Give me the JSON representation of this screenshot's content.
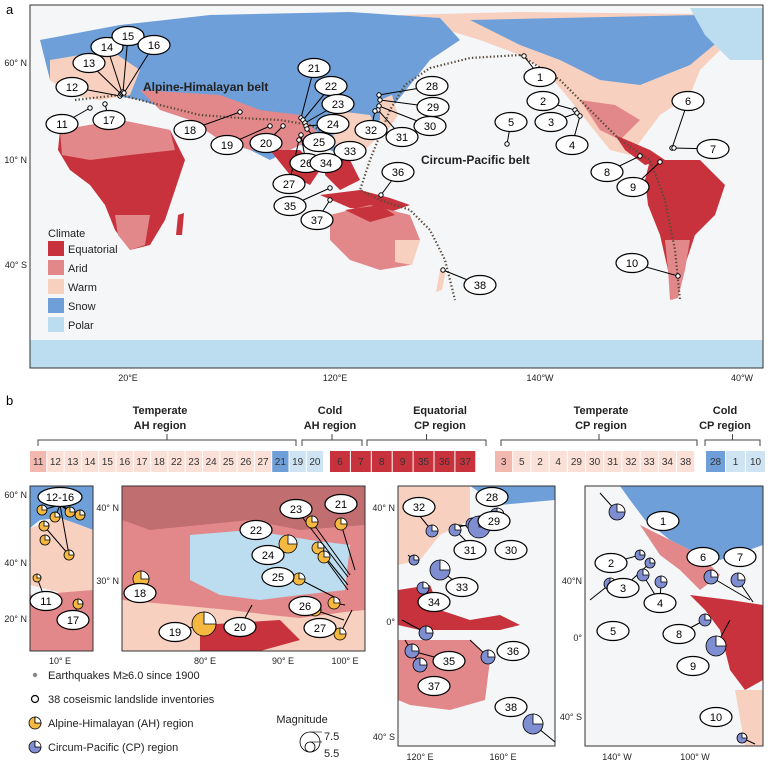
{
  "panel_a": {
    "label": "a",
    "belt_labels": {
      "ah": "Alpine-Himalayan belt",
      "cp": "Circum-Pacific belt"
    },
    "lat_ticks": [
      "60° N",
      "10° N",
      "40° S"
    ],
    "lon_ticks": [
      "20°E",
      "120°E",
      "140°W",
      "40°W"
    ],
    "legend": {
      "title": "Climate",
      "items": [
        {
          "label": "Equatorial",
          "color": "#c8323c"
        },
        {
          "label": "Arid",
          "color": "#e3888a"
        },
        {
          "label": "Warm",
          "color": "#f7d0c0"
        },
        {
          "label": "Snow",
          "color": "#6f9fd8"
        },
        {
          "label": "Polar",
          "color": "#bcdcef"
        }
      ]
    },
    "site_labels": [
      "1",
      "2",
      "3",
      "4",
      "5",
      "6",
      "7",
      "8",
      "9",
      "10",
      "11",
      "12",
      "13",
      "14",
      "15",
      "16",
      "17",
      "18",
      "19",
      "20",
      "21",
      "22",
      "23",
      "24",
      "25",
      "26",
      "27",
      "28",
      "29",
      "30",
      "31",
      "32",
      "33",
      "34",
      "35",
      "36",
      "37",
      "38"
    ]
  },
  "panel_b": {
    "label": "b",
    "group_titles": [
      {
        "line1": "Temperate",
        "line2": "AH region"
      },
      {
        "line1": "Cold",
        "line2": "AH region"
      },
      {
        "line1": "Equatorial",
        "line2": "CP region"
      },
      {
        "line1": "Temperate",
        "line2": "CP region"
      },
      {
        "line1": "Cold",
        "line2": "CP region"
      }
    ],
    "cells": [
      {
        "label": "11",
        "color": "#f2b8b0"
      },
      {
        "label": "12",
        "color": "#fbe0d8"
      },
      {
        "label": "13",
        "color": "#fbe0d8"
      },
      {
        "label": "14",
        "color": "#fbe0d8"
      },
      {
        "label": "15",
        "color": "#fbe0d8"
      },
      {
        "label": "16",
        "color": "#fbe0d8"
      },
      {
        "label": "17",
        "color": "#fbe0d8"
      },
      {
        "label": "18",
        "color": "#fbe0d8"
      },
      {
        "label": "22",
        "color": "#fbe0d8"
      },
      {
        "label": "23",
        "color": "#fbe0d8"
      },
      {
        "label": "24",
        "color": "#fbe0d8"
      },
      {
        "label": "25",
        "color": "#fbe0d8"
      },
      {
        "label": "26",
        "color": "#fbe0d8"
      },
      {
        "label": "27",
        "color": "#fbe0d8"
      },
      {
        "label": "21",
        "color": "#6f9fd8"
      },
      {
        "label": "19",
        "color": "#cfe4f3"
      },
      {
        "label": "20",
        "color": "#cfe4f3"
      },
      {
        "label": "6",
        "color": "#c8323c"
      },
      {
        "label": "7",
        "color": "#c8323c"
      },
      {
        "label": "8",
        "color": "#c8323c"
      },
      {
        "label": "9",
        "color": "#c8323c"
      },
      {
        "label": "35",
        "color": "#c8323c"
      },
      {
        "label": "36",
        "color": "#c8323c"
      },
      {
        "label": "37",
        "color": "#c8323c"
      },
      {
        "label": "3",
        "color": "#f2b8b0"
      },
      {
        "label": "5",
        "color": "#fbe0d8"
      },
      {
        "label": "2",
        "color": "#fbe0d8"
      },
      {
        "label": "4",
        "color": "#fbe0d8"
      },
      {
        "label": "29",
        "color": "#fbe0d8"
      },
      {
        "label": "30",
        "color": "#fbe0d8"
      },
      {
        "label": "31",
        "color": "#fbe0d8"
      },
      {
        "label": "32",
        "color": "#fbe0d8"
      },
      {
        "label": "33",
        "color": "#fbe0d8"
      },
      {
        "label": "34",
        "color": "#fbe0d8"
      },
      {
        "label": "38",
        "color": "#fbe0d8"
      },
      {
        "label": "28",
        "color": "#6f9fd8"
      },
      {
        "label": "1",
        "color": "#cfe4f3"
      },
      {
        "label": "10",
        "color": "#cfe4f3"
      }
    ],
    "inset_ticks": {
      "europe": {
        "lat": [
          "60° N",
          "40° N",
          "20° N"
        ],
        "lon": [
          "10° E"
        ],
        "label": "12-16"
      },
      "tibet": {
        "lat": [
          "40° N",
          "30° N"
        ],
        "lon": [
          "80° E",
          "90° E",
          "100° E"
        ]
      },
      "asia_pacific": {
        "lat": [
          "40° N",
          "0°",
          "40° S"
        ],
        "lon": [
          "120° E",
          "160° E"
        ]
      },
      "americas": {
        "lat": [
          "40°N",
          "0°",
          "40° S"
        ],
        "lon": [
          "140° W",
          "100° W"
        ]
      }
    },
    "legend": {
      "earthquakes": "Earthquakes M≥6.0 since 1900",
      "inventories": "38 coseismic landslide inventories",
      "ah": "Alpine-Himalayan (AH) region",
      "cp": "Circum-Pacific (CP) region",
      "magnitude_title": "Magnitude",
      "mag_high": "7.5",
      "mag_low": "5.5"
    }
  }
}
